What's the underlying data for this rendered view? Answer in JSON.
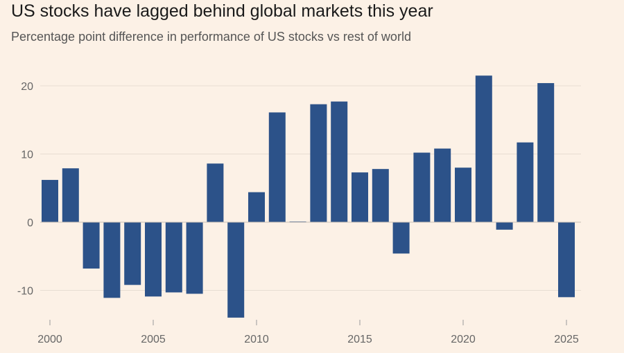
{
  "chart_data": {
    "type": "bar",
    "title": "US stocks have lagged behind global markets this year",
    "subtitle": "Percentage point difference in performance of US stocks vs rest of world",
    "xlabel": "",
    "ylabel": "",
    "categories": [
      "2000",
      "2001",
      "2002",
      "2003",
      "2004",
      "2005",
      "2006",
      "2007",
      "2008",
      "2009",
      "2010",
      "2011",
      "2012",
      "2013",
      "2014",
      "2015",
      "2016",
      "2017",
      "2018",
      "2019",
      "2020",
      "2021",
      "2022",
      "2023",
      "2024",
      "2025"
    ],
    "values": [
      6.2,
      7.9,
      -6.8,
      -11.1,
      -9.2,
      -10.9,
      -10.3,
      -10.5,
      8.6,
      -14.0,
      4.4,
      16.1,
      0.1,
      17.3,
      17.7,
      7.3,
      7.8,
      -4.6,
      10.2,
      10.8,
      8.0,
      21.5,
      -1.1,
      11.7,
      20.4,
      -11.0
    ],
    "ylim": [
      -14,
      22
    ],
    "yticks": [
      -10,
      0,
      10,
      20
    ],
    "ytick_labels": [
      "-10",
      "0",
      "10",
      "20"
    ],
    "xticks": [
      "2000",
      "2005",
      "2010",
      "2015",
      "2020",
      "2025"
    ],
    "grid": true,
    "colors": {
      "bar": "#2c5289",
      "grid": "#e7ddd2",
      "zero_line": "#c8bfb5",
      "background": "#fcf1e6"
    }
  }
}
